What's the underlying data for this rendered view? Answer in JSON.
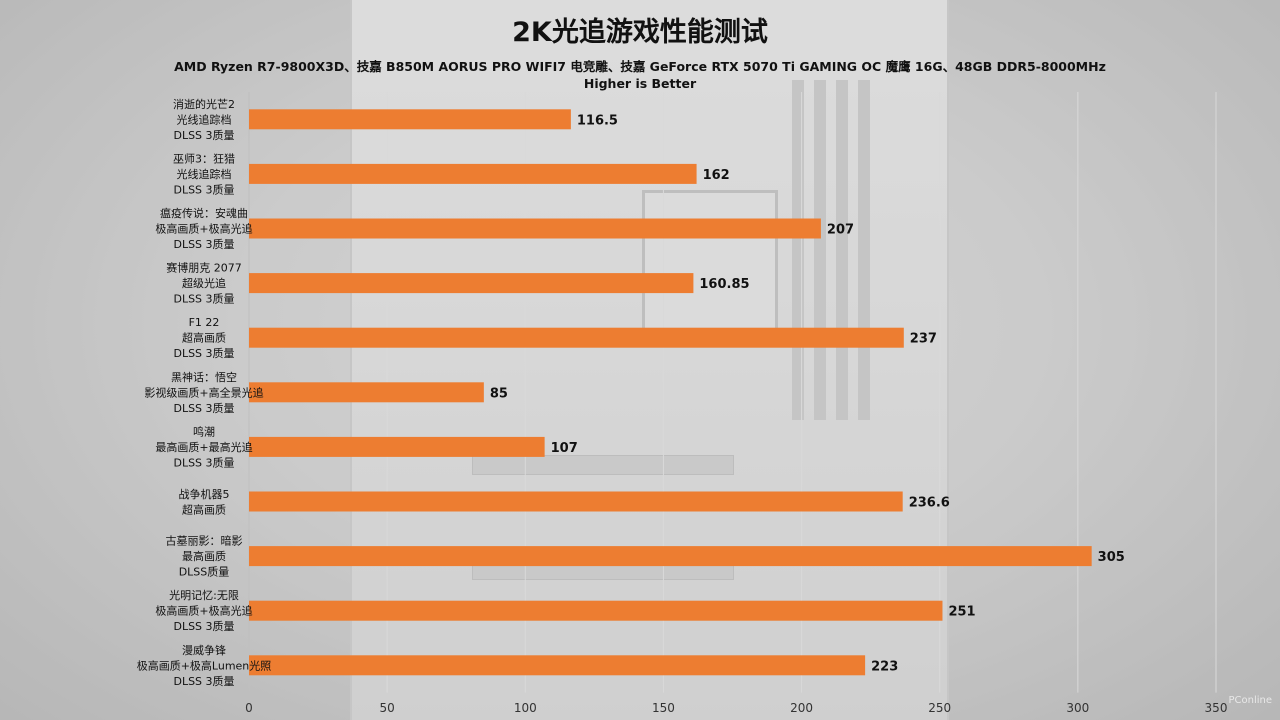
{
  "chart_data": {
    "type": "bar",
    "orientation": "horizontal",
    "title": "2K光追游戏性能测试",
    "subtitle": "AMD Ryzen R7-9800X3D、技嘉 B850M AORUS PRO WIFI7 电竞雕、技嘉 GeForce RTX 5070 Ti GAMING OC 魔鹰 16G、48GB DDR5-8000MHz",
    "note": "Higher is Better",
    "categories": [
      [
        "消逝的光芒2",
        "光线追踪档",
        "DLSS 3质量"
      ],
      [
        "巫师3：狂猎",
        "光线追踪档",
        "DLSS 3质量"
      ],
      [
        "瘟疫传说：安魂曲",
        "极高画质+极高光追",
        "DLSS 3质量"
      ],
      [
        "赛博朋克 2077",
        "超级光追",
        "DLSS 3质量"
      ],
      [
        "F1 22",
        "超高画质",
        "DLSS 3质量"
      ],
      [
        "黑神话：悟空",
        "影视级画质+高全景光追",
        "DLSS 3质量"
      ],
      [
        "鸣潮",
        "最高画质+最高光追",
        "DLSS 3质量"
      ],
      [
        "战争机器5",
        "超高画质"
      ],
      [
        "古墓丽影：暗影",
        "最高画质",
        "DLSS质量"
      ],
      [
        "光明记忆:无限",
        "极高画质+极高光追",
        "DLSS 3质量"
      ],
      [
        "漫威争锋",
        "极高画质+极高Lumen光照",
        "DLSS 3质量"
      ]
    ],
    "values": [
      116.5,
      162,
      207,
      160.85,
      237,
      85,
      107,
      236.6,
      305,
      251,
      223
    ],
    "value_labels": [
      "116.5",
      "162",
      "207",
      "160.85",
      "237",
      "85",
      "107",
      "236.6",
      "305",
      "251",
      "223"
    ],
    "xlim": [
      0,
      350
    ],
    "xticks": [
      0,
      50,
      100,
      150,
      200,
      250,
      300,
      350
    ],
    "xlabel": "",
    "ylabel": "",
    "grid": true,
    "legend": "none"
  },
  "colors": {
    "bar": "#ED7D31",
    "text": "#111111",
    "grid": "#d9d9d9"
  },
  "watermark": "PConline"
}
